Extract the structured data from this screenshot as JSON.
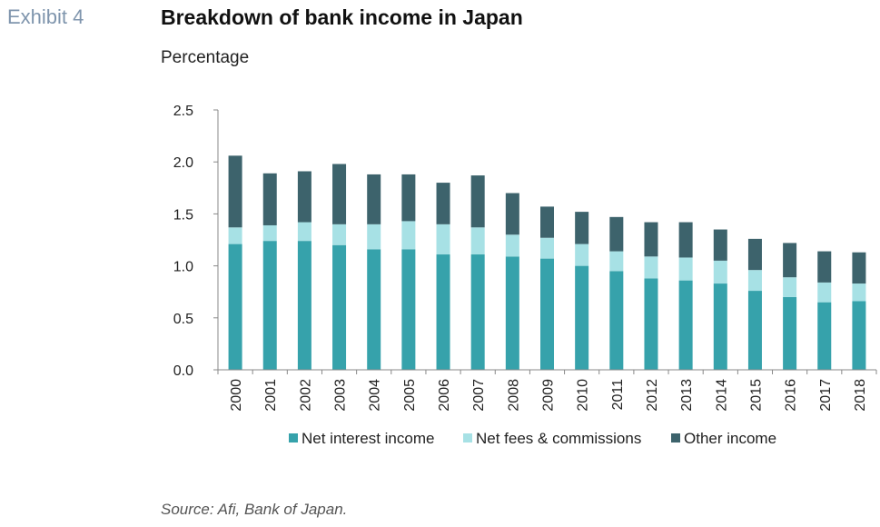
{
  "header": {
    "exhibit": "Exhibit 4",
    "title": "Breakdown of bank income in Japan",
    "subtitle": "Percentage"
  },
  "footer": {
    "source": "Source: Afi, Bank of Japan."
  },
  "chart_data": {
    "type": "bar",
    "stacked": true,
    "title": "Breakdown of bank income in Japan",
    "ylabel": "Percentage",
    "xlabel": "",
    "ylim": [
      0,
      2.5
    ],
    "yticks": [
      "0.0",
      "0.5",
      "1.0",
      "1.5",
      "2.0",
      "2.5"
    ],
    "grid": false,
    "legend_position": "bottom",
    "categories": [
      "2000",
      "2001",
      "2002",
      "2003",
      "2004",
      "2005",
      "2006",
      "2007",
      "2008",
      "2009",
      "2010",
      "2011",
      "2012",
      "2013",
      "2014",
      "2015",
      "2016",
      "2017",
      "2018"
    ],
    "series": [
      {
        "name": "Net interest income",
        "color": "#36a2ab",
        "values": [
          1.21,
          1.24,
          1.24,
          1.2,
          1.16,
          1.16,
          1.11,
          1.11,
          1.09,
          1.07,
          1.0,
          0.95,
          0.88,
          0.86,
          0.83,
          0.76,
          0.7,
          0.65,
          0.66
        ]
      },
      {
        "name": "Net fees & commissions",
        "color": "#a7e1e5",
        "values": [
          0.16,
          0.15,
          0.18,
          0.2,
          0.24,
          0.27,
          0.29,
          0.26,
          0.21,
          0.2,
          0.21,
          0.19,
          0.21,
          0.22,
          0.22,
          0.2,
          0.19,
          0.19,
          0.17
        ]
      },
      {
        "name": "Other income",
        "color": "#3d636c",
        "values": [
          0.69,
          0.5,
          0.49,
          0.58,
          0.48,
          0.45,
          0.4,
          0.5,
          0.4,
          0.3,
          0.31,
          0.33,
          0.33,
          0.34,
          0.3,
          0.3,
          0.33,
          0.3,
          0.3
        ]
      }
    ]
  }
}
